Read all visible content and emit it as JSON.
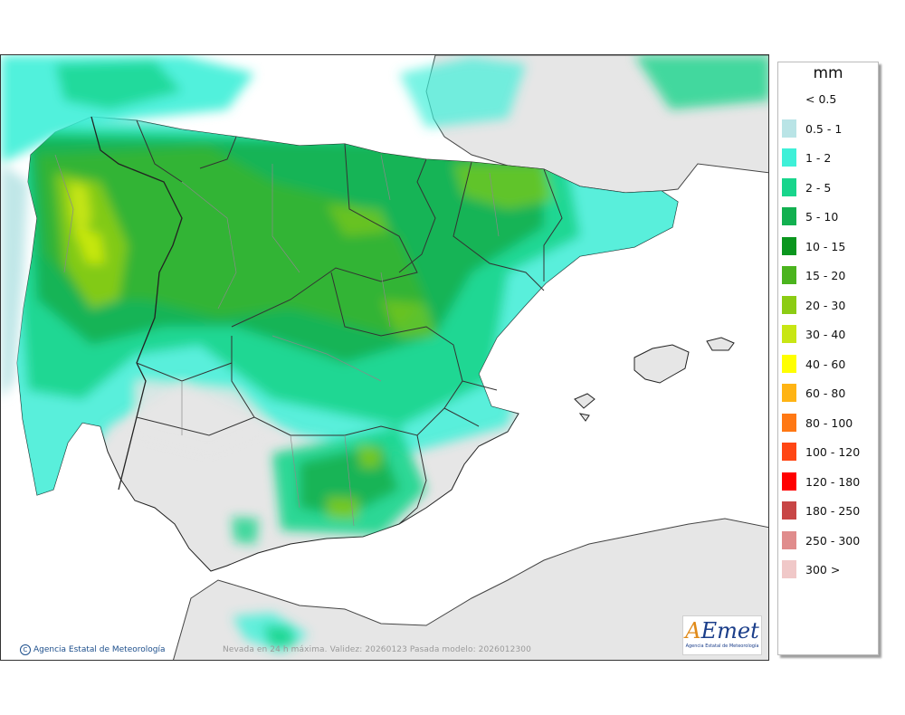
{
  "map": {
    "caption": "Nevada en 24 h máxima. Validez: 20260123 Pasada modelo: 2026012300",
    "copyright": "Agencia Estatal de Meteorología",
    "colors": {
      "sea": "#ffffff",
      "land": "#e6e6e6",
      "border": "#222222",
      "province": "#888888"
    }
  },
  "logo": {
    "mark_a": "A",
    "mark_rest": "Emet",
    "subtitle": "Agencia Estatal de Meteorología"
  },
  "legend": {
    "unit": "mm",
    "items": [
      {
        "label": "< 0.5",
        "color": "#ffffff"
      },
      {
        "label": "0.5 - 1",
        "color": "#b9e4e6"
      },
      {
        "label": "1 - 2",
        "color": "#3ef0d8"
      },
      {
        "label": "2 - 5",
        "color": "#18d58c"
      },
      {
        "label": "5 - 10",
        "color": "#12b050"
      },
      {
        "label": "10 - 15",
        "color": "#0a961e"
      },
      {
        "label": "15 - 20",
        "color": "#4bb41e"
      },
      {
        "label": "20 - 30",
        "color": "#8ccc14"
      },
      {
        "label": "30 - 40",
        "color": "#c8e614"
      },
      {
        "label": "40 - 60",
        "color": "#ffff00"
      },
      {
        "label": "60 - 80",
        "color": "#ffb414"
      },
      {
        "label": "80 - 100",
        "color": "#ff7814"
      },
      {
        "label": "100 - 120",
        "color": "#ff4614"
      },
      {
        "label": "120 - 180",
        "color": "#ff0000"
      },
      {
        "label": "180 - 250",
        "color": "#c84646"
      },
      {
        "label": "250 - 300",
        "color": "#e08c8c"
      },
      {
        "label": "300 >",
        "color": "#f0c8c8"
      }
    ]
  }
}
